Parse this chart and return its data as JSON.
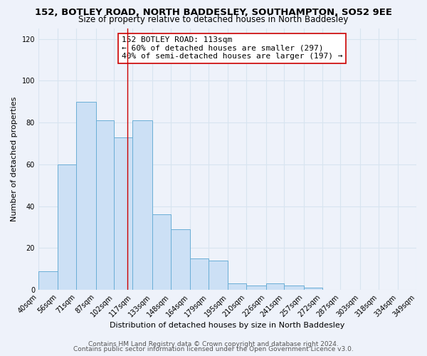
{
  "title": "152, BOTLEY ROAD, NORTH BADDESLEY, SOUTHAMPTON, SO52 9EE",
  "subtitle": "Size of property relative to detached houses in North Baddesley",
  "xlabel": "Distribution of detached houses by size in North Baddesley",
  "ylabel": "Number of detached properties",
  "bar_edges": [
    40,
    56,
    71,
    87,
    102,
    117,
    133,
    148,
    164,
    179,
    195,
    210,
    226,
    241,
    257,
    272,
    287,
    303,
    318,
    334,
    349
  ],
  "bar_heights": [
    9,
    60,
    90,
    81,
    73,
    81,
    36,
    29,
    15,
    14,
    3,
    2,
    3,
    2,
    1,
    0,
    0,
    0,
    0,
    0
  ],
  "bar_color": "#cce0f5",
  "bar_edgecolor": "#6aaed6",
  "vline_x": 113,
  "vline_color": "#cc0000",
  "annotation_title": "152 BOTLEY ROAD: 113sqm",
  "annotation_line1": "← 60% of detached houses are smaller (297)",
  "annotation_line2": "40% of semi-detached houses are larger (197) →",
  "annotation_box_color": "#ffffff",
  "annotation_box_edgecolor": "#cc0000",
  "ylim": [
    0,
    125
  ],
  "yticks": [
    0,
    20,
    40,
    60,
    80,
    100,
    120
  ],
  "tick_labels": [
    "40sqm",
    "56sqm",
    "71sqm",
    "87sqm",
    "102sqm",
    "117sqm",
    "133sqm",
    "148sqm",
    "164sqm",
    "179sqm",
    "195sqm",
    "210sqm",
    "226sqm",
    "241sqm",
    "257sqm",
    "272sqm",
    "287sqm",
    "303sqm",
    "318sqm",
    "334sqm",
    "349sqm"
  ],
  "footer_line1": "Contains HM Land Registry data © Crown copyright and database right 2024.",
  "footer_line2": "Contains public sector information licensed under the Open Government Licence v3.0.",
  "bg_color": "#eef2fa",
  "grid_color": "#d8e4f0",
  "title_fontsize": 9.5,
  "subtitle_fontsize": 8.5,
  "axis_label_fontsize": 8,
  "tick_fontsize": 7,
  "footer_fontsize": 6.5,
  "annotation_fontsize": 8
}
